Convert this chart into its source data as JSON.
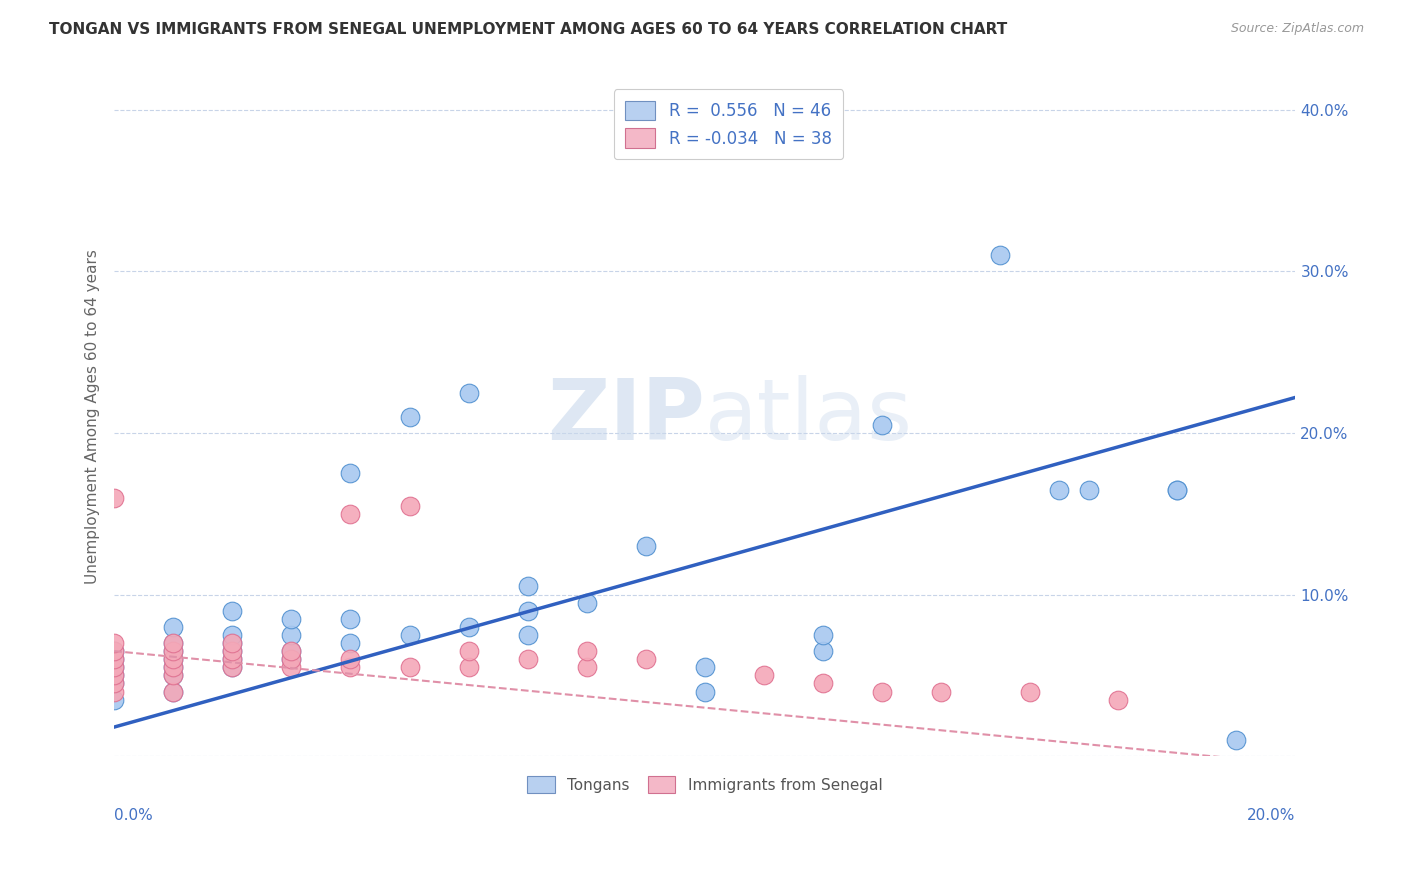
{
  "title": "TONGAN VS IMMIGRANTS FROM SENEGAL UNEMPLOYMENT AMONG AGES 60 TO 64 YEARS CORRELATION CHART",
  "source": "Source: ZipAtlas.com",
  "ylabel": "Unemployment Among Ages 60 to 64 years",
  "xmin": 0.0,
  "xmax": 0.2,
  "ymin": 0.0,
  "ymax": 0.42,
  "yticks": [
    0.0,
    0.1,
    0.2,
    0.3,
    0.4
  ],
  "ytick_labels": [
    "",
    "10.0%",
    "20.0%",
    "30.0%",
    "40.0%"
  ],
  "tongan_color": "#a8c8f0",
  "senegal_color": "#f4a8b8",
  "tongan_edge_color": "#5090d0",
  "senegal_edge_color": "#e07090",
  "tongan_line_color": "#3060c0",
  "senegal_line_color": "#e090a8",
  "watermark_color": "#d0dff0",
  "background_color": "#ffffff",
  "grid_color": "#c8d4e8",
  "legend_text_color": "#4472c4",
  "tongan_scatter_x": [
    0.0,
    0.0,
    0.0,
    0.0,
    0.0,
    0.0,
    0.01,
    0.01,
    0.01,
    0.01,
    0.01,
    0.01,
    0.01,
    0.02,
    0.02,
    0.02,
    0.02,
    0.02,
    0.02,
    0.03,
    0.03,
    0.03,
    0.03,
    0.04,
    0.04,
    0.04,
    0.05,
    0.05,
    0.06,
    0.06,
    0.07,
    0.07,
    0.07,
    0.08,
    0.09,
    0.1,
    0.1,
    0.12,
    0.12,
    0.13,
    0.15,
    0.16,
    0.165,
    0.18,
    0.18,
    0.19
  ],
  "tongan_scatter_y": [
    0.035,
    0.045,
    0.05,
    0.055,
    0.06,
    0.065,
    0.04,
    0.05,
    0.055,
    0.06,
    0.065,
    0.07,
    0.08,
    0.055,
    0.06,
    0.065,
    0.07,
    0.075,
    0.09,
    0.06,
    0.065,
    0.075,
    0.085,
    0.07,
    0.085,
    0.175,
    0.075,
    0.21,
    0.08,
    0.225,
    0.075,
    0.09,
    0.105,
    0.095,
    0.13,
    0.04,
    0.055,
    0.065,
    0.075,
    0.205,
    0.31,
    0.165,
    0.165,
    0.165,
    0.165,
    0.01
  ],
  "senegal_scatter_x": [
    0.0,
    0.0,
    0.0,
    0.0,
    0.0,
    0.0,
    0.0,
    0.0,
    0.01,
    0.01,
    0.01,
    0.01,
    0.01,
    0.01,
    0.02,
    0.02,
    0.02,
    0.02,
    0.03,
    0.03,
    0.03,
    0.04,
    0.04,
    0.04,
    0.05,
    0.05,
    0.06,
    0.06,
    0.07,
    0.08,
    0.08,
    0.09,
    0.11,
    0.12,
    0.13,
    0.14,
    0.155,
    0.17
  ],
  "senegal_scatter_y": [
    0.04,
    0.045,
    0.05,
    0.055,
    0.06,
    0.065,
    0.07,
    0.16,
    0.04,
    0.05,
    0.055,
    0.06,
    0.065,
    0.07,
    0.055,
    0.06,
    0.065,
    0.07,
    0.055,
    0.06,
    0.065,
    0.055,
    0.06,
    0.15,
    0.055,
    0.155,
    0.055,
    0.065,
    0.06,
    0.055,
    0.065,
    0.06,
    0.05,
    0.045,
    0.04,
    0.04,
    0.04,
    0.035
  ]
}
